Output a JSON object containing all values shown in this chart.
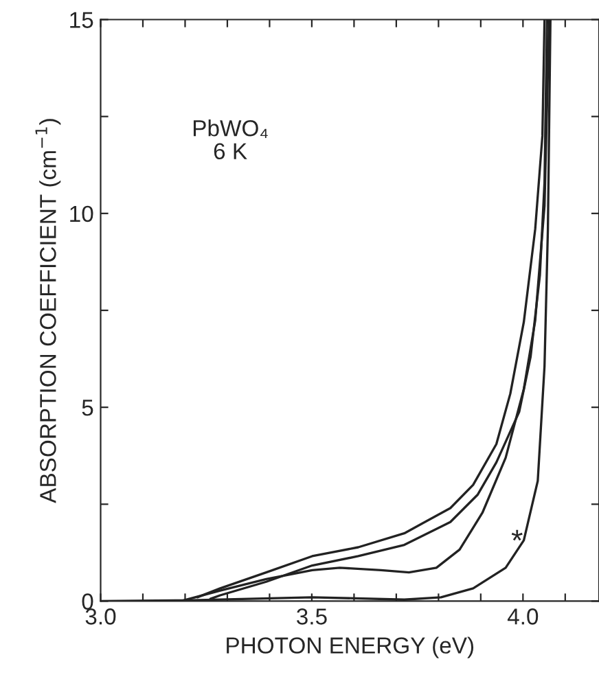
{
  "chart_data": {
    "type": "line",
    "xlabel": "PHOTON ENERGY (eV)",
    "ylabel": "ABSORPTION COEFFICIENT (cm$^{−1}$)",
    "annotations": [
      "PbWO₄\n6 K",
      {
        "text": "*",
        "x": 3.986,
        "y": 1.5
      }
    ],
    "series": [
      {
        "color": "#222222",
        "x": [
          3.229,
          3.283,
          3.392,
          3.501,
          3.61,
          3.719,
          3.828,
          3.882,
          3.937,
          3.97,
          4.002,
          4.029,
          4.046,
          4.051
        ],
        "values": [
          0.1,
          0.33,
          0.74,
          1.16,
          1.39,
          1.75,
          2.4,
          3.0,
          4.05,
          5.35,
          7.2,
          9.6,
          12,
          15
        ]
      },
      {
        "color": "#222222",
        "x": [
          3.26,
          3.283,
          3.392,
          3.501,
          3.61,
          3.719,
          3.828,
          3.893,
          3.937,
          3.991,
          4.018,
          4.04,
          4.051,
          4.057
        ],
        "values": [
          0.06,
          0.15,
          0.5,
          0.92,
          1.16,
          1.45,
          2.04,
          2.75,
          3.58,
          4.88,
          6.3,
          8.4,
          10.8,
          15
        ]
      },
      {
        "color": "#222222",
        "x": [
          3.19,
          3.283,
          3.392,
          3.501,
          3.566,
          3.664,
          3.73,
          3.795,
          3.85,
          3.904,
          3.959,
          4.002,
          4.029,
          4.051,
          4.062
        ],
        "values": [
          0,
          0.27,
          0.57,
          0.8,
          0.86,
          0.8,
          0.74,
          0.86,
          1.33,
          2.28,
          3.7,
          5.47,
          7.24,
          10.2,
          15
        ]
      },
      {
        "color": "#222222",
        "x": [
          3.0,
          3.2,
          3.501,
          3.719,
          3.806,
          3.882,
          3.959,
          4.002,
          4.035,
          4.051,
          4.059,
          4.065
        ],
        "values": [
          0,
          0.02,
          0.1,
          0.04,
          0.1,
          0.33,
          0.86,
          1.57,
          3.1,
          6.06,
          9.6,
          15
        ]
      }
    ],
    "xlim": [
      3.0,
      4.18
    ],
    "ylim": [
      0,
      15
    ],
    "xticks": [
      {
        "value": 3.0,
        "label": "3.0"
      },
      {
        "value": 3.1,
        "label": null
      },
      {
        "value": 3.2,
        "label": null
      },
      {
        "value": 3.3,
        "label": null
      },
      {
        "value": 3.4,
        "label": null
      },
      {
        "value": 3.5,
        "label": "3.5"
      },
      {
        "value": 3.6,
        "label": null
      },
      {
        "value": 3.7,
        "label": null
      },
      {
        "value": 3.8,
        "label": null
      },
      {
        "value": 3.9,
        "label": null
      },
      {
        "value": 4.0,
        "label": "4.0"
      },
      {
        "value": 4.1,
        "label": null
      }
    ],
    "yticks": [
      0,
      {
        "value": 2.5,
        "label": null
      },
      5,
      {
        "value": 7.5,
        "label": null
      },
      10,
      {
        "value": 12.5,
        "label": null
      },
      15
    ],
    "grid": false,
    "marker": "none",
    "line_style": "solid"
  }
}
